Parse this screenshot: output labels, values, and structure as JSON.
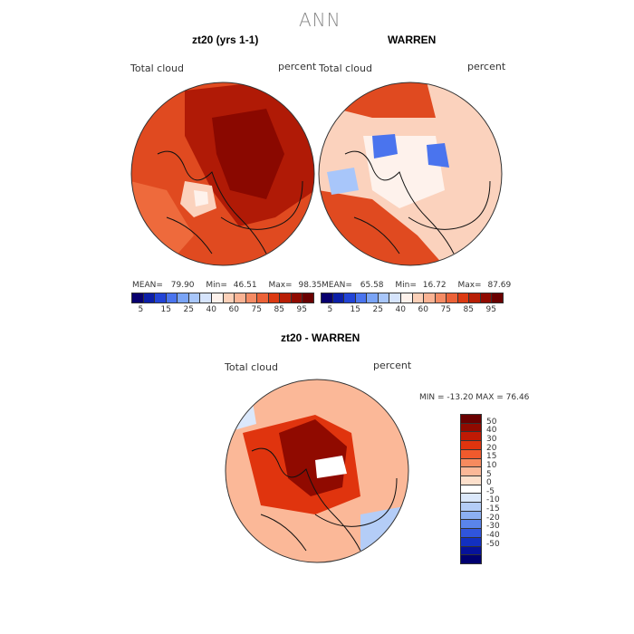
{
  "title": "ANN",
  "panels": {
    "left": {
      "title": "zt20 (yrs 1-1)",
      "var_label": "Total cloud",
      "unit_label": "percent",
      "stats": {
        "mean_label": "MEAN=",
        "mean": "79.90",
        "min_label": "Min=",
        "min": "46.51",
        "max_label": "Max=",
        "max": "98.35"
      }
    },
    "right": {
      "title": "WARREN",
      "var_label": "Total cloud",
      "unit_label": "percent",
      "stats": {
        "mean_label": "MEAN=",
        "mean": "65.58",
        "min_label": "Min=",
        "min": "16.72",
        "max_label": "Max=",
        "max": "87.69"
      }
    },
    "diff": {
      "title": "zt20 - WARREN",
      "var_label": "Total cloud",
      "unit_label": "percent",
      "stats_text": "MIN = -13.20  MAX =  76.46"
    }
  },
  "colorbar_abs": {
    "colors": [
      "#08006e",
      "#0c1fa8",
      "#2244d6",
      "#4a74ee",
      "#7aa4f6",
      "#a8c6fa",
      "#d6e4fc",
      "#fef2ec",
      "#fcd0b8",
      "#fab394",
      "#f58b64",
      "#ec6238",
      "#dc3a12",
      "#b81e06",
      "#900a00",
      "#6a0000"
    ],
    "tick_labels": [
      "5",
      "15",
      "25",
      "40",
      "60",
      "75",
      "85",
      "95"
    ]
  },
  "colorbar_diff": {
    "colors": [
      "#6a0000",
      "#900a00",
      "#c01a04",
      "#e0340e",
      "#f05a2c",
      "#f78a5e",
      "#fbb898",
      "#fde0cc",
      "#ffffff",
      "#dbe8fb",
      "#b4cdf7",
      "#8cb0f2",
      "#5a84ea",
      "#3055dc",
      "#1230c0",
      "#06129a",
      "#000070"
    ],
    "tick_labels": [
      "50",
      "40",
      "30",
      "20",
      "15",
      "10",
      "5",
      "0",
      "-5",
      "-10",
      "-15",
      "-20",
      "-30",
      "-40",
      "-50"
    ]
  },
  "legend_colors": {
    "abs_high": "#d8401a",
    "abs_veryhigh": "#a01004",
    "abs_low": "#fbd2bd",
    "neg": "#b4cdf7"
  }
}
